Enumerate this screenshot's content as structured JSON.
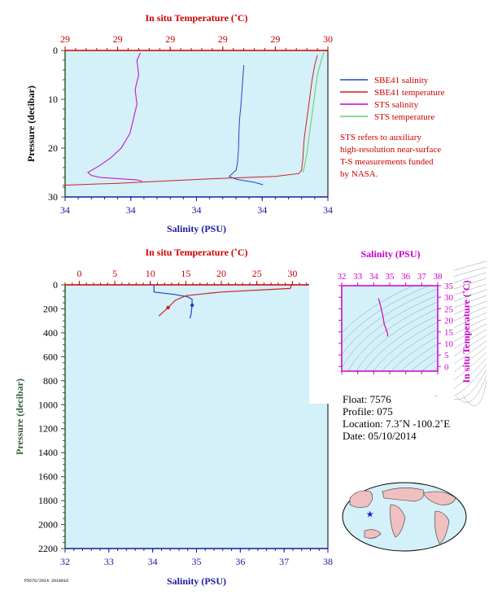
{
  "colors": {
    "plot_bg": "#d4f0f8",
    "salinity_axis": "#1a1aa0",
    "temperature_axis": "#cc0000",
    "pressure_axis": "#2e5e2e",
    "sbe41_salinity": "#2244cc",
    "sbe41_temperature": "#cc2222",
    "sts_salinity": "#cc00cc",
    "sts_temperature": "#66cc66",
    "ts_axis": "#cc00cc"
  },
  "chart_data": [
    {
      "type": "line",
      "name": "near-surface profile",
      "xlabel": "Salinity (PSU)",
      "x2label": "In situ Temperature (˚C)",
      "ylabel": "Pressure (decibar)",
      "ylim": [
        30,
        0
      ],
      "xlim": [
        34.0,
        34.075
      ],
      "x2lim": [
        29.0,
        30.0
      ],
      "xtick_labels": [
        "34",
        "34",
        "34",
        "34",
        "34"
      ],
      "x2tick_labels": [
        "29",
        "29",
        "29",
        "29",
        "29",
        "30"
      ],
      "ytick_values": [
        0,
        10,
        20,
        30
      ],
      "ytick_labels": [
        "0",
        "10",
        "20",
        "30"
      ],
      "legend": [
        {
          "label": "SBE41 salinity",
          "color": "#2244cc"
        },
        {
          "label": "SBE41 temperature",
          "color": "#cc2222"
        },
        {
          "label": "STS salinity",
          "color": "#cc00cc"
        },
        {
          "label": "STS temperature",
          "color": "#66cc66"
        }
      ],
      "note": [
        "STS refers to auxiliary",
        "high-resolution near-surface",
        "T-S measurements funded",
        "by NASA."
      ],
      "series": [
        {
          "name": "SBE41 salinity",
          "axis": "salinity",
          "color": "#2244cc",
          "points": [
            [
              34.051,
              3.0
            ],
            [
              34.0508,
              5
            ],
            [
              34.0505,
              8
            ],
            [
              34.0502,
              11
            ],
            [
              34.0498,
              14
            ],
            [
              34.0496,
              17
            ],
            [
              34.0495,
              20
            ],
            [
              34.0492,
              23
            ],
            [
              34.0488,
              24.5
            ],
            [
              34.0468,
              25.8
            ],
            [
              34.049,
              26.4
            ],
            [
              34.054,
              27.0
            ],
            [
              34.0565,
              27.5
            ]
          ]
        },
        {
          "name": "SBE41 temperature",
          "axis": "temperature",
          "color": "#cc2222",
          "points": [
            [
              29.96,
              1
            ],
            [
              29.95,
              3
            ],
            [
              29.94,
              6
            ],
            [
              29.93,
              10
            ],
            [
              29.92,
              14
            ],
            [
              29.91,
              18
            ],
            [
              29.905,
              22
            ],
            [
              29.9,
              24.5
            ],
            [
              29.89,
              25.2
            ],
            [
              29.8,
              25.8
            ],
            [
              29.55,
              26.3
            ],
            [
              29.2,
              27.2
            ],
            [
              28.99,
              27.6
            ]
          ]
        },
        {
          "name": "STS salinity",
          "axis": "salinity",
          "color": "#cc00cc",
          "points": [
            [
              34.0215,
              0.5
            ],
            [
              34.0205,
              2
            ],
            [
              34.021,
              5
            ],
            [
              34.02,
              8
            ],
            [
              34.0205,
              11
            ],
            [
              34.0195,
              14
            ],
            [
              34.0185,
              17
            ],
            [
              34.016,
              20
            ],
            [
              34.013,
              22
            ],
            [
              34.01,
              23.5
            ],
            [
              34.0065,
              25.0
            ],
            [
              34.0075,
              25.6
            ],
            [
              34.01,
              26.0
            ],
            [
              34.016,
              26.3
            ],
            [
              34.0205,
              26.5
            ],
            [
              34.022,
              26.8
            ]
          ]
        },
        {
          "name": "STS temperature",
          "axis": "temperature",
          "color": "#66cc66",
          "points": [
            [
              29.985,
              0.3
            ],
            [
              29.975,
              2
            ],
            [
              29.96,
              5
            ],
            [
              29.95,
              9
            ],
            [
              29.94,
              13
            ],
            [
              29.93,
              17
            ],
            [
              29.92,
              21
            ],
            [
              29.91,
              24
            ],
            [
              29.905,
              25.0
            ]
          ]
        }
      ]
    },
    {
      "type": "line",
      "name": "full-depth profile",
      "xlabel": "Salinity (PSU)",
      "x2label": "In situ Temperature (˚C)",
      "ylabel": "Pressure (decibar)",
      "ylim": [
        2200,
        0
      ],
      "xlim": [
        32,
        38
      ],
      "x2lim": [
        -2,
        35
      ],
      "xtick_values": [
        32,
        33,
        34,
        35,
        36,
        37,
        38
      ],
      "x2tick_values": [
        0,
        5,
        10,
        15,
        20,
        25,
        30,
        35
      ],
      "ytick_values": [
        0,
        200,
        400,
        600,
        800,
        1000,
        1200,
        1400,
        1600,
        1800,
        2000,
        2200
      ],
      "series": [
        {
          "name": "salinity",
          "axis": "salinity",
          "color": "#2244cc",
          "points": [
            [
              34.03,
              0
            ],
            [
              34.03,
              60
            ],
            [
              34.5,
              80
            ],
            [
              34.8,
              100
            ],
            [
              34.9,
              120
            ],
            [
              34.9,
              170
            ],
            [
              34.88,
              240
            ],
            [
              34.85,
              280
            ]
          ]
        },
        {
          "name": "temperature",
          "axis": "temperature",
          "color": "#cc2222",
          "points": [
            [
              29.9,
              0
            ],
            [
              29.7,
              30
            ],
            [
              20,
              60
            ],
            [
              15,
              90
            ],
            [
              13.5,
              130
            ],
            [
              12.5,
              190
            ],
            [
              11.2,
              260
            ]
          ]
        }
      ]
    },
    {
      "type": "line",
      "name": "T-S diagram",
      "xlabel": "Salinity (PSU)",
      "ylabel": "In situ Temperature (˚C)",
      "xlim": [
        32,
        38
      ],
      "ylim": [
        -2,
        35
      ],
      "xtick_values": [
        32,
        33,
        34,
        35,
        36,
        37,
        38
      ],
      "ytick_values": [
        0,
        5,
        10,
        15,
        20,
        25,
        30,
        35
      ],
      "series": [
        {
          "name": "profile",
          "color": "#cc00cc",
          "points": [
            [
              34.3,
              29.5
            ],
            [
              34.4,
              27
            ],
            [
              34.5,
              24
            ],
            [
              34.6,
              21
            ],
            [
              34.65,
              18.5
            ],
            [
              34.78,
              16
            ],
            [
              34.88,
              14
            ],
            [
              34.85,
              13
            ]
          ]
        }
      ]
    }
  ],
  "float_info": {
    "float": "Float: 7576",
    "profile": "Profile: 075",
    "location": "Location: 7.3˚N -100.2˚E",
    "date": "Date: 05/10/2014"
  },
  "map": {
    "marker_lat": 7.3,
    "marker_lon": -100.2
  },
  "footer": "P5576/2014 2019010"
}
